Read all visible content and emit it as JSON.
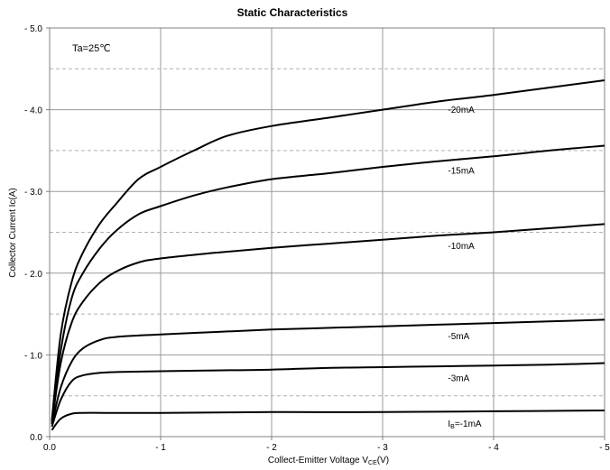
{
  "chart_data": {
    "type": "line",
    "title": "Static Characteristics",
    "annotation": "Ta=25℃",
    "xlabel": "Collect-Emitter Voltage  V",
    "xlabel_sub": "CE",
    "xlabel_unit": "(V)",
    "ylabel": "Collector Current  Ic(A)",
    "xlim": [
      0,
      -5
    ],
    "ylim": [
      0,
      -5
    ],
    "x_ticks": [
      {
        "v": 0,
        "label": "0.0"
      },
      {
        "v": -1,
        "label": "- 1"
      },
      {
        "v": -2,
        "label": "- 2"
      },
      {
        "v": -3,
        "label": "- 3"
      },
      {
        "v": -4,
        "label": "- 4"
      },
      {
        "v": -5,
        "label": "- 5"
      }
    ],
    "y_ticks": [
      {
        "v": 0,
        "label": "0.0"
      },
      {
        "v": -1,
        "label": "- 1.0"
      },
      {
        "v": -2,
        "label": "- 2.0"
      },
      {
        "v": -3,
        "label": "- 3.0"
      },
      {
        "v": -4,
        "label": "- 4.0"
      },
      {
        "v": -5,
        "label": "- 5.0"
      }
    ],
    "grid": true,
    "minor_grid": "dashed",
    "series": [
      {
        "name": "-20mA",
        "label_prefix": "",
        "label_sub": "",
        "label_text": "-20mA",
        "label_at": -3.8,
        "points": [
          [
            -0.02,
            -0.2
          ],
          [
            -0.1,
            -1.25
          ],
          [
            -0.2,
            -1.9
          ],
          [
            -0.3,
            -2.25
          ],
          [
            -0.45,
            -2.6
          ],
          [
            -0.6,
            -2.85
          ],
          [
            -0.8,
            -3.15
          ],
          [
            -1.0,
            -3.3
          ],
          [
            -1.3,
            -3.5
          ],
          [
            -1.6,
            -3.68
          ],
          [
            -2.0,
            -3.8
          ],
          [
            -2.5,
            -3.9
          ],
          [
            -3.0,
            -4.0
          ],
          [
            -3.5,
            -4.1
          ],
          [
            -4.0,
            -4.18
          ],
          [
            -4.5,
            -4.27
          ],
          [
            -5.0,
            -4.36
          ]
        ]
      },
      {
        "name": "-15mA",
        "label_prefix": "",
        "label_sub": "",
        "label_text": "-15mA",
        "label_at": -3.8,
        "points": [
          [
            -0.02,
            -0.18
          ],
          [
            -0.1,
            -1.05
          ],
          [
            -0.2,
            -1.7
          ],
          [
            -0.3,
            -2.0
          ],
          [
            -0.45,
            -2.3
          ],
          [
            -0.6,
            -2.52
          ],
          [
            -0.8,
            -2.72
          ],
          [
            -1.0,
            -2.82
          ],
          [
            -1.3,
            -2.95
          ],
          [
            -1.6,
            -3.05
          ],
          [
            -2.0,
            -3.15
          ],
          [
            -2.5,
            -3.22
          ],
          [
            -3.0,
            -3.3
          ],
          [
            -3.5,
            -3.37
          ],
          [
            -4.0,
            -3.43
          ],
          [
            -4.5,
            -3.5
          ],
          [
            -5.0,
            -3.56
          ]
        ]
      },
      {
        "name": "-10mA",
        "label_prefix": "",
        "label_sub": "",
        "label_text": "-10mA",
        "label_at": -3.8,
        "points": [
          [
            -0.02,
            -0.16
          ],
          [
            -0.1,
            -0.9
          ],
          [
            -0.2,
            -1.4
          ],
          [
            -0.3,
            -1.65
          ],
          [
            -0.45,
            -1.88
          ],
          [
            -0.6,
            -2.02
          ],
          [
            -0.8,
            -2.13
          ],
          [
            -1.0,
            -2.18
          ],
          [
            -1.5,
            -2.25
          ],
          [
            -2.0,
            -2.31
          ],
          [
            -2.5,
            -2.36
          ],
          [
            -3.0,
            -2.41
          ],
          [
            -3.5,
            -2.46
          ],
          [
            -4.0,
            -2.5
          ],
          [
            -4.5,
            -2.55
          ],
          [
            -5.0,
            -2.6
          ]
        ]
      },
      {
        "name": "-5mA",
        "label_prefix": "",
        "label_sub": "",
        "label_text": "-5mA",
        "label_at": -3.8,
        "points": [
          [
            -0.02,
            -0.15
          ],
          [
            -0.1,
            -0.6
          ],
          [
            -0.2,
            -0.92
          ],
          [
            -0.3,
            -1.08
          ],
          [
            -0.45,
            -1.18
          ],
          [
            -0.6,
            -1.22
          ],
          [
            -1.0,
            -1.25
          ],
          [
            -1.5,
            -1.28
          ],
          [
            -2.0,
            -1.31
          ],
          [
            -2.5,
            -1.33
          ],
          [
            -3.0,
            -1.35
          ],
          [
            -3.5,
            -1.37
          ],
          [
            -4.0,
            -1.39
          ],
          [
            -4.5,
            -1.41
          ],
          [
            -5.0,
            -1.43
          ]
        ]
      },
      {
        "name": "-3mA",
        "label_prefix": "",
        "label_sub": "",
        "label_text": "-3mA",
        "label_at": -3.8,
        "points": [
          [
            -0.02,
            -0.12
          ],
          [
            -0.1,
            -0.45
          ],
          [
            -0.2,
            -0.68
          ],
          [
            -0.3,
            -0.75
          ],
          [
            -0.45,
            -0.78
          ],
          [
            -0.6,
            -0.79
          ],
          [
            -1.0,
            -0.8
          ],
          [
            -1.5,
            -0.81
          ],
          [
            -2.0,
            -0.82
          ],
          [
            -2.5,
            -0.84
          ],
          [
            -3.0,
            -0.85
          ],
          [
            -3.5,
            -0.86
          ],
          [
            -4.0,
            -0.87
          ],
          [
            -4.5,
            -0.88
          ],
          [
            -5.0,
            -0.9
          ]
        ]
      },
      {
        "name": "IB=-1mA",
        "label_prefix": "I",
        "label_sub": "B",
        "label_text": "=-1mA",
        "label_at": -3.8,
        "points": [
          [
            -0.02,
            -0.08
          ],
          [
            -0.1,
            -0.22
          ],
          [
            -0.2,
            -0.28
          ],
          [
            -0.3,
            -0.29
          ],
          [
            -0.5,
            -0.29
          ],
          [
            -1.0,
            -0.29
          ],
          [
            -2.0,
            -0.3
          ],
          [
            -3.0,
            -0.3
          ],
          [
            -4.0,
            -0.31
          ],
          [
            -5.0,
            -0.32
          ]
        ]
      }
    ]
  }
}
